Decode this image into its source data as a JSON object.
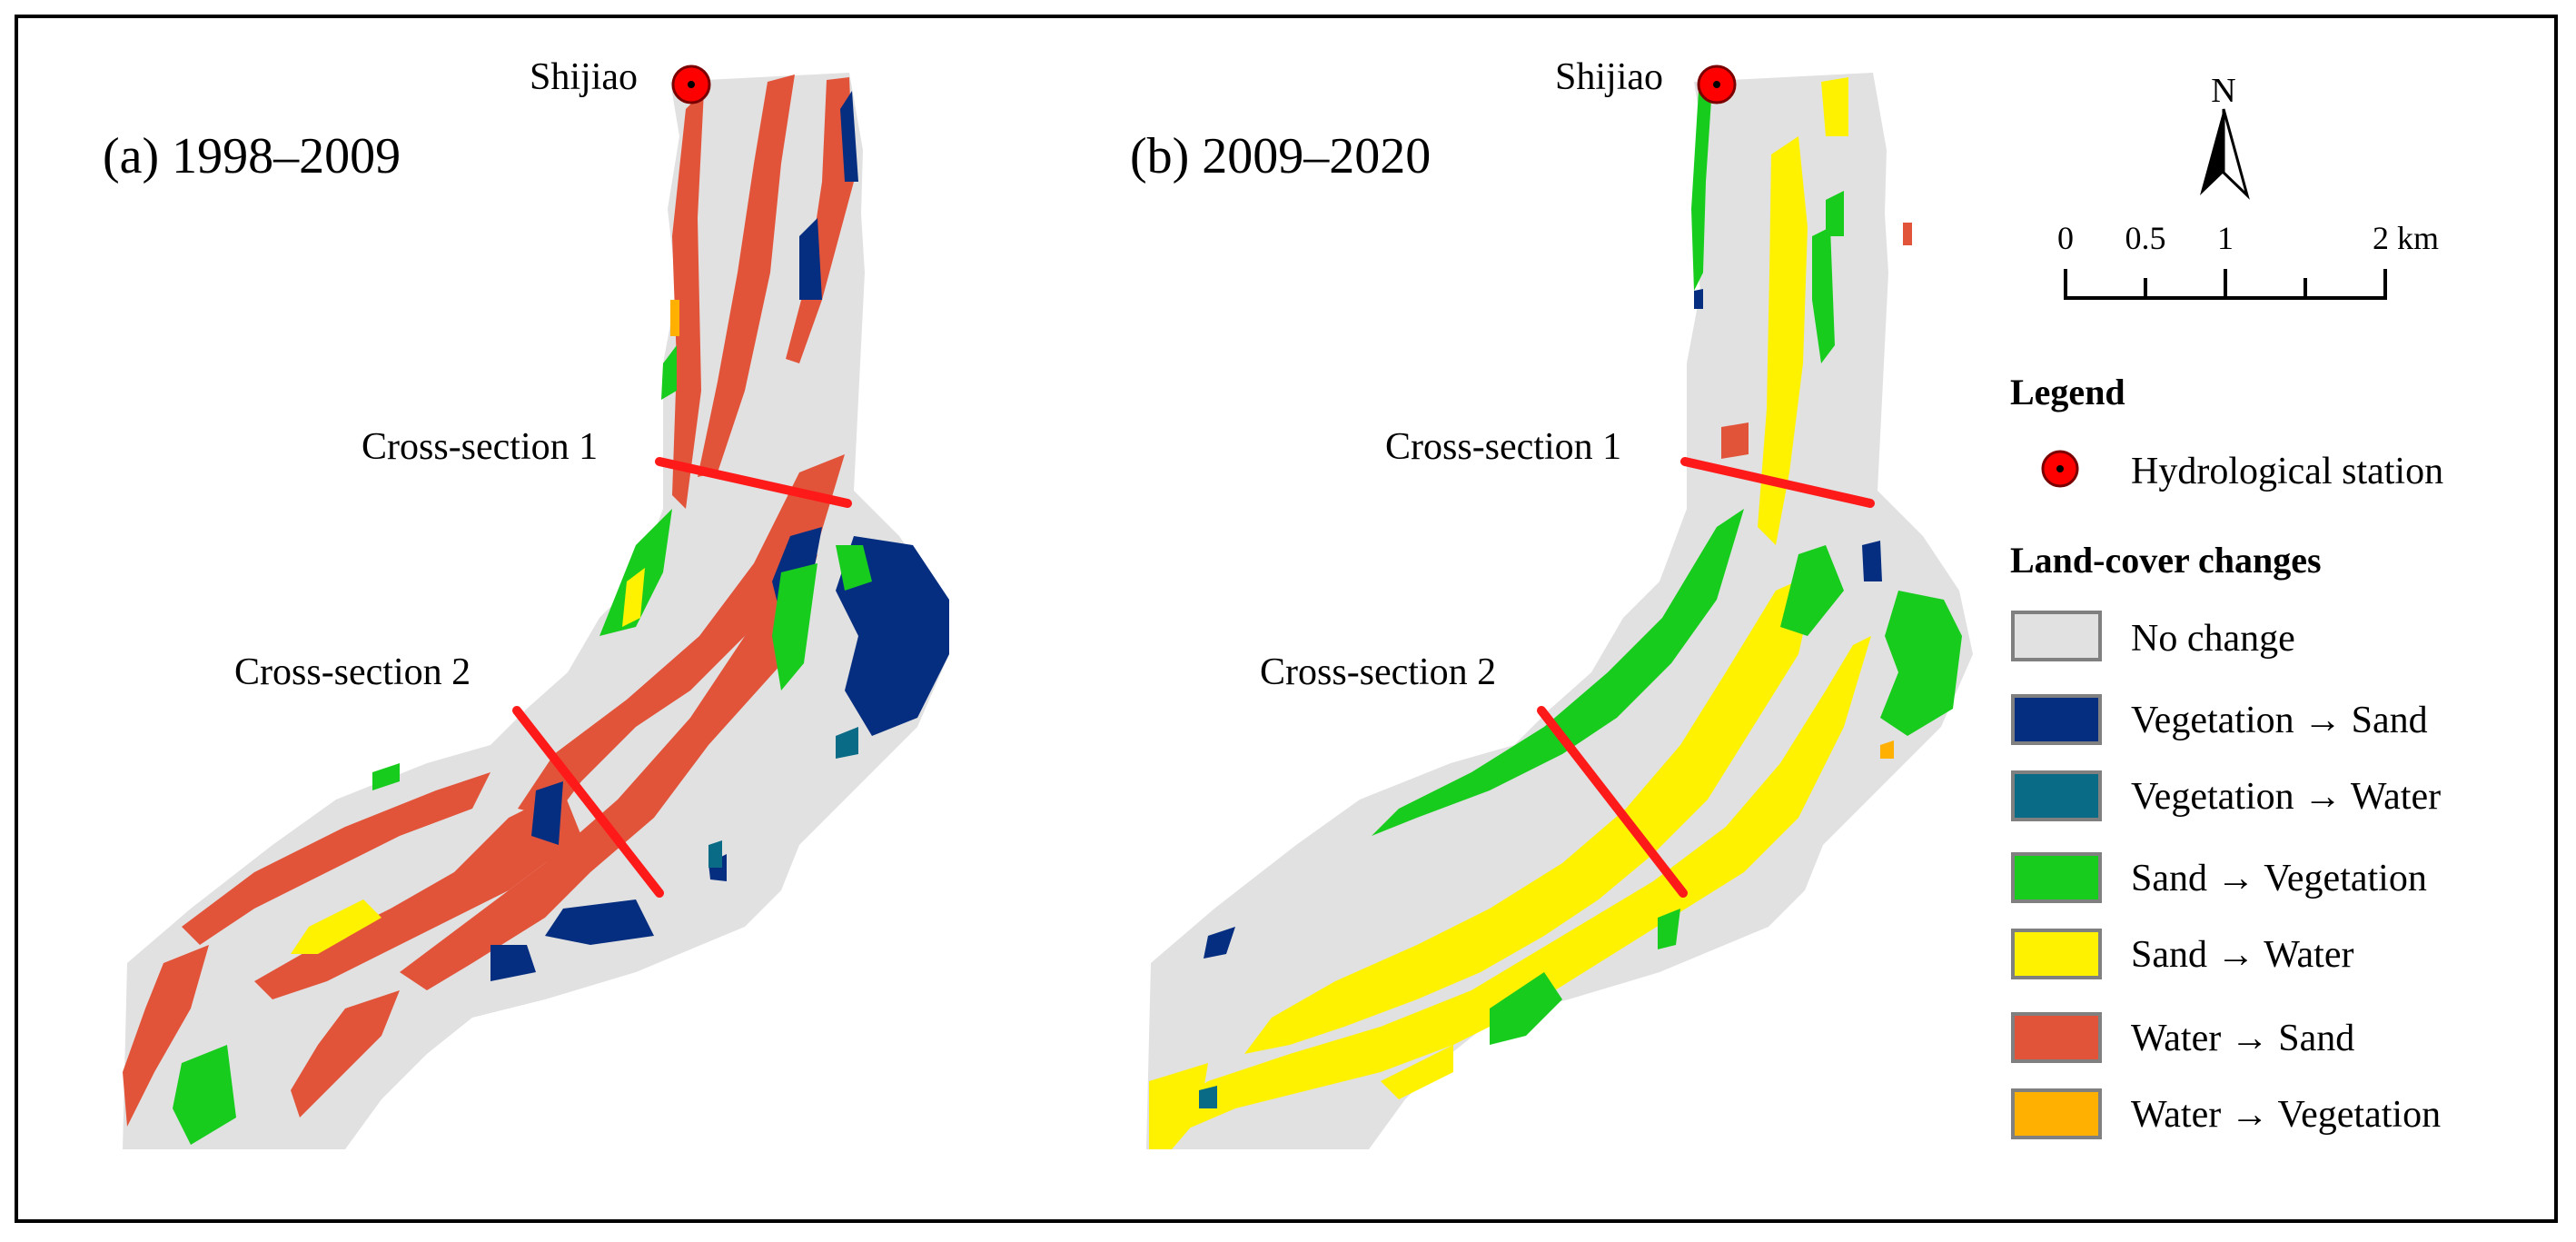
{
  "panels": [
    {
      "title": "(a) 1998–2009",
      "station_label": "Shijiao",
      "cross_sections": [
        "Cross-section 1",
        "Cross-section 2"
      ]
    },
    {
      "title": "(b) 2009–2020",
      "station_label": "Shijiao",
      "cross_sections": [
        "Cross-section 1",
        "Cross-section 2"
      ]
    }
  ],
  "north_arrow": {
    "label": "N"
  },
  "scale_bar": {
    "ticks": [
      "0",
      "0.5",
      "1",
      "2 km"
    ]
  },
  "legend": {
    "title": "Legend",
    "station_item": "Hydrological station",
    "changes_title": "Land-cover changes",
    "items": [
      {
        "label": "No change",
        "color": "#e1e1e1"
      },
      {
        "label": "Vegetation → Sand",
        "color": "#062e80"
      },
      {
        "label": "Vegetation → Water",
        "color": "#0a6b86"
      },
      {
        "label": "Sand → Vegetation",
        "color": "#18cc1e"
      },
      {
        "label": "Sand → Water",
        "color": "#fff200"
      },
      {
        "label": "Water → Sand",
        "color": "#e2543a"
      },
      {
        "label": "Water → Vegetation",
        "color": "#ffb000"
      }
    ]
  },
  "colors": {
    "station_fill": "#ff0000",
    "cross_section_line": "#ff1a1a",
    "no_change": "#e1e1e1"
  }
}
